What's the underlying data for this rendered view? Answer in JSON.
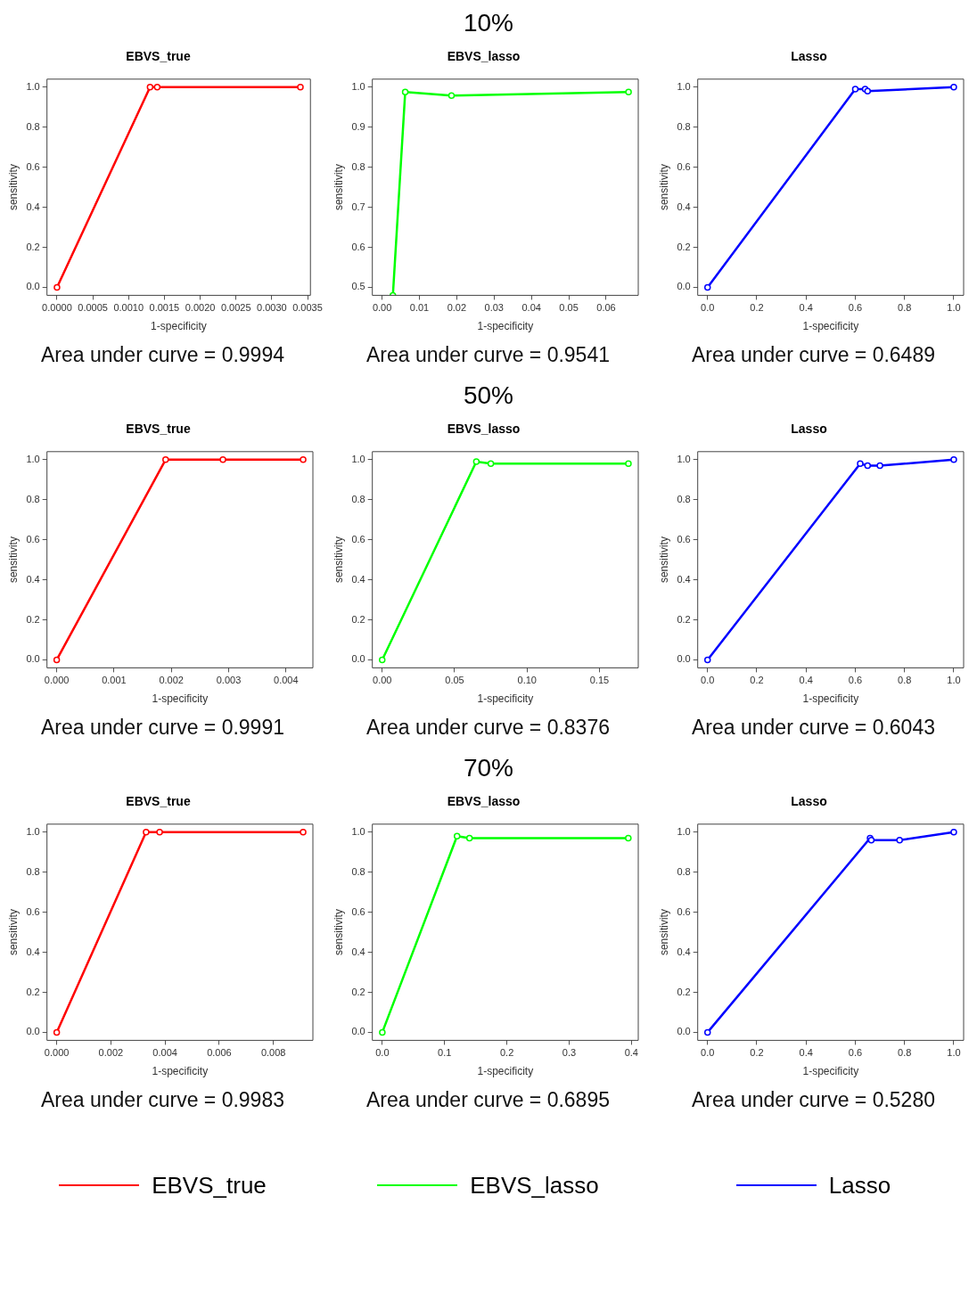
{
  "chart_data": [
    {
      "type": "other",
      "title": "10%"
    },
    {
      "type": "line",
      "title": "EBVS_true",
      "xlabel": "1-specificity",
      "ylabel": "sensitivity",
      "grid": false,
      "marker": "circle",
      "line_style": "solid",
      "annotations": [
        "Area under curve = 0.9994"
      ],
      "xlim": [
        -0.00014,
        0.00354
      ],
      "xticks": [
        {
          "value": 0,
          "label": "0.0000"
        },
        {
          "value": 0.0005,
          "label": "0.0005"
        },
        {
          "value": 0.001,
          "label": "0.0010"
        },
        {
          "value": 0.0015,
          "label": "0.0015"
        },
        {
          "value": 0.002,
          "label": "0.0020"
        },
        {
          "value": 0.0025,
          "label": "0.0025"
        },
        {
          "value": 0.003,
          "label": "0.0030"
        },
        {
          "value": 0.0035,
          "label": "0.0035"
        }
      ],
      "ylim": [
        -0.04,
        1.04
      ],
      "yticks": [
        {
          "value": 0,
          "label": "0.0"
        },
        {
          "value": 0.2,
          "label": "0.2"
        },
        {
          "value": 0.4,
          "label": "0.4"
        },
        {
          "value": 0.6,
          "label": "0.6"
        },
        {
          "value": 0.8,
          "label": "0.8"
        },
        {
          "value": 1,
          "label": "1.0"
        }
      ],
      "series": [
        {
          "color": "#ff0000",
          "x": [
            0,
            0.0013,
            0.0014,
            0.0034
          ],
          "values": [
            0,
            1,
            1,
            1
          ]
        }
      ]
    },
    {
      "type": "line",
      "title": "EBVS_lasso",
      "xlabel": "1-specificity",
      "ylabel": "sensitivity",
      "grid": false,
      "marker": "circle",
      "line_style": "solid",
      "annotations": [
        "Area under curve = 0.9541"
      ],
      "xlim": [
        -0.0026,
        0.0686
      ],
      "xticks": [
        {
          "value": 0,
          "label": "0.00"
        },
        {
          "value": 0.01,
          "label": "0.01"
        },
        {
          "value": 0.02,
          "label": "0.02"
        },
        {
          "value": 0.03,
          "label": "0.03"
        },
        {
          "value": 0.04,
          "label": "0.04"
        },
        {
          "value": 0.05,
          "label": "0.05"
        },
        {
          "value": 0.06,
          "label": "0.06"
        }
      ],
      "ylim": [
        0.48,
        1.02
      ],
      "yticks": [
        {
          "value": 0.5,
          "label": "0.5"
        },
        {
          "value": 0.6,
          "label": "0.6"
        },
        {
          "value": 0.7,
          "label": "0.7"
        },
        {
          "value": 0.8,
          "label": "0.8"
        },
        {
          "value": 0.9,
          "label": "0.9"
        },
        {
          "value": 1,
          "label": "1.0"
        }
      ],
      "series": [
        {
          "color": "#00ff00",
          "x": [
            0.0029,
            0.0062,
            0.0186,
            0.066
          ],
          "values": [
            0.48,
            0.988,
            0.979,
            0.988
          ]
        }
      ]
    },
    {
      "type": "line",
      "title": "Lasso",
      "xlabel": "1-specificity",
      "ylabel": "sensitivity",
      "grid": false,
      "marker": "circle",
      "line_style": "solid",
      "annotations": [
        "Area under curve = 0.6489"
      ],
      "xlim": [
        -0.04,
        1.04
      ],
      "xticks": [
        {
          "value": 0,
          "label": "0.0"
        },
        {
          "value": 0.2,
          "label": "0.2"
        },
        {
          "value": 0.4,
          "label": "0.4"
        },
        {
          "value": 0.6,
          "label": "0.6"
        },
        {
          "value": 0.8,
          "label": "0.8"
        },
        {
          "value": 1,
          "label": "1.0"
        }
      ],
      "ylim": [
        -0.04,
        1.04
      ],
      "yticks": [
        {
          "value": 0,
          "label": "0.0"
        },
        {
          "value": 0.2,
          "label": "0.2"
        },
        {
          "value": 0.4,
          "label": "0.4"
        },
        {
          "value": 0.6,
          "label": "0.6"
        },
        {
          "value": 0.8,
          "label": "0.8"
        },
        {
          "value": 1,
          "label": "1.0"
        }
      ],
      "series": [
        {
          "color": "#0000ff",
          "x": [
            0,
            0.6,
            0.64,
            0.65,
            1
          ],
          "values": [
            0,
            0.99,
            0.99,
            0.98,
            1
          ]
        }
      ]
    },
    {
      "type": "other",
      "title": "50%"
    },
    {
      "type": "line",
      "title": "EBVS_true",
      "xlabel": "1-specificity",
      "ylabel": "sensitivity",
      "grid": false,
      "marker": "circle",
      "line_style": "solid",
      "annotations": [
        "Area under curve = 0.9991"
      ],
      "xlim": [
        -0.00017,
        0.00447
      ],
      "xticks": [
        {
          "value": 0,
          "label": "0.000"
        },
        {
          "value": 0.001,
          "label": "0.001"
        },
        {
          "value": 0.002,
          "label": "0.002"
        },
        {
          "value": 0.003,
          "label": "0.003"
        },
        {
          "value": 0.004,
          "label": "0.004"
        }
      ],
      "ylim": [
        -0.04,
        1.04
      ],
      "yticks": [
        {
          "value": 0,
          "label": "0.0"
        },
        {
          "value": 0.2,
          "label": "0.2"
        },
        {
          "value": 0.4,
          "label": "0.4"
        },
        {
          "value": 0.6,
          "label": "0.6"
        },
        {
          "value": 0.8,
          "label": "0.8"
        },
        {
          "value": 1,
          "label": "1.0"
        }
      ],
      "series": [
        {
          "color": "#ff0000",
          "x": [
            0,
            0.0019,
            0.0029,
            0.0043
          ],
          "values": [
            0,
            1,
            1,
            1
          ]
        }
      ]
    },
    {
      "type": "line",
      "title": "EBVS_lasso",
      "xlabel": "1-specificity",
      "ylabel": "sensitivity",
      "grid": false,
      "marker": "circle",
      "line_style": "solid",
      "annotations": [
        "Area under curve = 0.8376"
      ],
      "xlim": [
        -0.0068,
        0.1768
      ],
      "xticks": [
        {
          "value": 0,
          "label": "0.00"
        },
        {
          "value": 0.05,
          "label": "0.05"
        },
        {
          "value": 0.1,
          "label": "0.10"
        },
        {
          "value": 0.15,
          "label": "0.15"
        }
      ],
      "ylim": [
        -0.04,
        1.04
      ],
      "yticks": [
        {
          "value": 0,
          "label": "0.0"
        },
        {
          "value": 0.2,
          "label": "0.2"
        },
        {
          "value": 0.4,
          "label": "0.4"
        },
        {
          "value": 0.6,
          "label": "0.6"
        },
        {
          "value": 0.8,
          "label": "0.8"
        },
        {
          "value": 1,
          "label": "1.0"
        }
      ],
      "series": [
        {
          "color": "#00ff00",
          "x": [
            0,
            0.065,
            0.075,
            0.17
          ],
          "values": [
            0,
            0.99,
            0.98,
            0.98
          ]
        }
      ]
    },
    {
      "type": "line",
      "title": "Lasso",
      "xlabel": "1-specificity",
      "ylabel": "sensitivity",
      "grid": false,
      "marker": "circle",
      "line_style": "solid",
      "annotations": [
        "Area under curve = 0.6043"
      ],
      "xlim": [
        -0.04,
        1.04
      ],
      "xticks": [
        {
          "value": 0,
          "label": "0.0"
        },
        {
          "value": 0.2,
          "label": "0.2"
        },
        {
          "value": 0.4,
          "label": "0.4"
        },
        {
          "value": 0.6,
          "label": "0.6"
        },
        {
          "value": 0.8,
          "label": "0.8"
        },
        {
          "value": 1,
          "label": "1.0"
        }
      ],
      "ylim": [
        -0.04,
        1.04
      ],
      "yticks": [
        {
          "value": 0,
          "label": "0.0"
        },
        {
          "value": 0.2,
          "label": "0.2"
        },
        {
          "value": 0.4,
          "label": "0.4"
        },
        {
          "value": 0.6,
          "label": "0.6"
        },
        {
          "value": 0.8,
          "label": "0.8"
        },
        {
          "value": 1,
          "label": "1.0"
        }
      ],
      "series": [
        {
          "color": "#0000ff",
          "x": [
            0,
            0.62,
            0.65,
            0.7,
            1
          ],
          "values": [
            0,
            0.98,
            0.97,
            0.97,
            1
          ]
        }
      ]
    },
    {
      "type": "other",
      "title": "70%"
    },
    {
      "type": "line",
      "title": "EBVS_true",
      "xlabel": "1-specificity",
      "ylabel": "sensitivity",
      "grid": false,
      "marker": "circle",
      "line_style": "solid",
      "legend": "bottom",
      "annotations": [
        "Area under curve = 0.9983"
      ],
      "xlim": [
        -0.00036,
        0.00946
      ],
      "xticks": [
        {
          "value": 0,
          "label": "0.000"
        },
        {
          "value": 0.002,
          "label": "0.002"
        },
        {
          "value": 0.004,
          "label": "0.004"
        },
        {
          "value": 0.006,
          "label": "0.006"
        },
        {
          "value": 0.008,
          "label": "0.008"
        }
      ],
      "ylim": [
        -0.04,
        1.04
      ],
      "yticks": [
        {
          "value": 0,
          "label": "0.0"
        },
        {
          "value": 0.2,
          "label": "0.2"
        },
        {
          "value": 0.4,
          "label": "0.4"
        },
        {
          "value": 0.6,
          "label": "0.6"
        },
        {
          "value": 0.8,
          "label": "0.8"
        },
        {
          "value": 1,
          "label": "1.0"
        }
      ],
      "series": [
        {
          "name": "EBVS_true",
          "color": "#ff0000",
          "x": [
            0,
            0.0033,
            0.0038,
            0.0091
          ],
          "values": [
            0,
            1,
            1,
            1
          ]
        }
      ]
    },
    {
      "type": "line",
      "title": "EBVS_lasso",
      "xlabel": "1-specificity",
      "ylabel": "sensitivity",
      "grid": false,
      "marker": "circle",
      "line_style": "solid",
      "legend": "bottom",
      "annotations": [
        "Area under curve = 0.6895"
      ],
      "xlim": [
        -0.016,
        0.411
      ],
      "xticks": [
        {
          "value": 0,
          "label": "0.0"
        },
        {
          "value": 0.1,
          "label": "0.1"
        },
        {
          "value": 0.2,
          "label": "0.2"
        },
        {
          "value": 0.3,
          "label": "0.3"
        },
        {
          "value": 0.4,
          "label": "0.4"
        }
      ],
      "ylim": [
        -0.04,
        1.04
      ],
      "yticks": [
        {
          "value": 0,
          "label": "0.0"
        },
        {
          "value": 0.2,
          "label": "0.2"
        },
        {
          "value": 0.4,
          "label": "0.4"
        },
        {
          "value": 0.6,
          "label": "0.6"
        },
        {
          "value": 0.8,
          "label": "0.8"
        },
        {
          "value": 1,
          "label": "1.0"
        }
      ],
      "series": [
        {
          "name": "EBVS_lasso",
          "color": "#00ff00",
          "x": [
            0,
            0.12,
            0.14,
            0.395
          ],
          "values": [
            0,
            0.98,
            0.97,
            0.97
          ]
        }
      ]
    },
    {
      "type": "line",
      "title": "Lasso",
      "xlabel": "1-specificity",
      "ylabel": "sensitivity",
      "grid": false,
      "marker": "circle",
      "line_style": "solid",
      "legend": "bottom",
      "annotations": [
        "Area under curve = 0.5280"
      ],
      "xlim": [
        -0.04,
        1.04
      ],
      "xticks": [
        {
          "value": 0,
          "label": "0.0"
        },
        {
          "value": 0.2,
          "label": "0.2"
        },
        {
          "value": 0.4,
          "label": "0.4"
        },
        {
          "value": 0.6,
          "label": "0.6"
        },
        {
          "value": 0.8,
          "label": "0.8"
        },
        {
          "value": 1,
          "label": "1.0"
        }
      ],
      "ylim": [
        -0.04,
        1.04
      ],
      "yticks": [
        {
          "value": 0,
          "label": "0.0"
        },
        {
          "value": 0.2,
          "label": "0.2"
        },
        {
          "value": 0.4,
          "label": "0.4"
        },
        {
          "value": 0.6,
          "label": "0.6"
        },
        {
          "value": 0.8,
          "label": "0.8"
        },
        {
          "value": 1,
          "label": "1.0"
        }
      ],
      "series": [
        {
          "name": "Lasso",
          "color": "#0000ff",
          "x": [
            0,
            0.66,
            0.665,
            0.78,
            1
          ],
          "values": [
            0,
            0.97,
            0.96,
            0.96,
            1
          ]
        }
      ]
    }
  ]
}
